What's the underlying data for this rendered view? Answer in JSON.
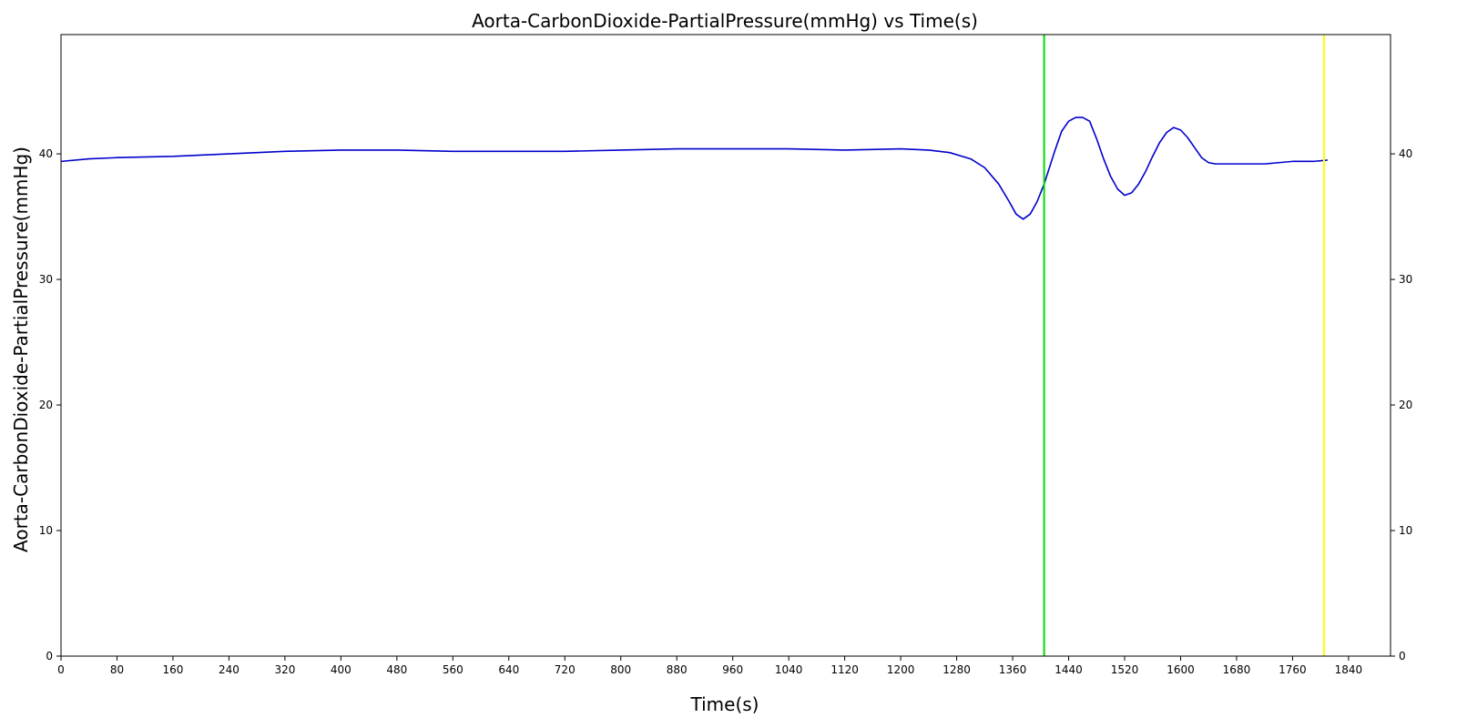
{
  "chart_data": {
    "type": "line",
    "title": "Aorta-CarbonDioxide-PartialPressure(mmHg) vs Time(s)",
    "xlabel": "Time(s)",
    "ylabel": "Aorta-CarbonDioxide-PartialPressure(mmHg)",
    "xlim": [
      0,
      1900
    ],
    "ylim": [
      0,
      49.5
    ],
    "xticks": [
      0,
      80,
      160,
      240,
      320,
      400,
      480,
      560,
      640,
      720,
      800,
      880,
      960,
      1040,
      1120,
      1200,
      1280,
      1360,
      1440,
      1520,
      1600,
      1680,
      1760,
      1840
    ],
    "yticks": [
      0,
      10,
      20,
      30,
      40
    ],
    "right_axis_ticks": true,
    "grid": false,
    "series": [
      {
        "color": "#0000cc",
        "x": [
          0,
          40,
          80,
          160,
          240,
          320,
          400,
          480,
          560,
          640,
          720,
          800,
          880,
          960,
          1040,
          1120,
          1200,
          1240,
          1270,
          1300,
          1320,
          1340,
          1355,
          1365,
          1375,
          1385,
          1395,
          1405,
          1420,
          1430,
          1440,
          1450,
          1460,
          1470,
          1480,
          1490,
          1500,
          1510,
          1520,
          1530,
          1540,
          1550,
          1560,
          1570,
          1580,
          1590,
          1600,
          1610,
          1620,
          1630,
          1640,
          1650,
          1660,
          1680,
          1720,
          1760,
          1790,
          1810
        ],
        "y": [
          39.4,
          39.6,
          39.7,
          39.8,
          40.0,
          40.2,
          40.3,
          40.3,
          40.2,
          40.2,
          40.2,
          40.3,
          40.4,
          40.4,
          40.4,
          40.3,
          40.4,
          40.3,
          40.1,
          39.6,
          38.9,
          37.6,
          36.2,
          35.2,
          34.8,
          35.2,
          36.2,
          37.6,
          40.2,
          41.8,
          42.6,
          42.9,
          42.9,
          42.6,
          41.2,
          39.6,
          38.2,
          37.2,
          36.7,
          36.9,
          37.6,
          38.6,
          39.8,
          40.9,
          41.7,
          42.1,
          41.9,
          41.3,
          40.5,
          39.7,
          39.3,
          39.2,
          39.2,
          39.2,
          39.2,
          39.4,
          39.4,
          39.5
        ]
      }
    ],
    "vlines": [
      {
        "x": 1405,
        "color": "#00dd00"
      },
      {
        "x": 1805,
        "color": "#ffff00"
      }
    ]
  }
}
